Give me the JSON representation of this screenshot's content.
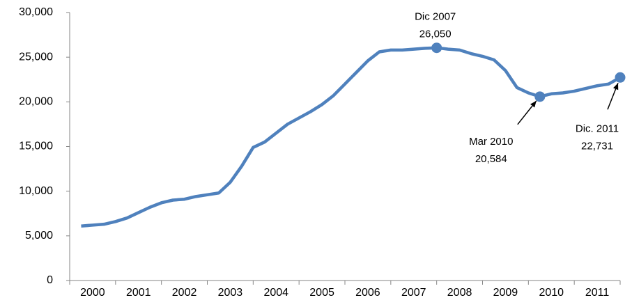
{
  "chart_data": {
    "type": "line",
    "categories": [
      null,
      "2000",
      null,
      null,
      null,
      "2001",
      null,
      null,
      null,
      "2002",
      null,
      null,
      null,
      "2003",
      null,
      null,
      null,
      "2004",
      null,
      null,
      null,
      "2005",
      null,
      null,
      null,
      "2006",
      null,
      null,
      null,
      "2007",
      null,
      null,
      null,
      "2008",
      null,
      null,
      null,
      "2009",
      null,
      null,
      null,
      "2010",
      null,
      null,
      null,
      "2011",
      null,
      null
    ],
    "series": [
      {
        "name": null,
        "color": "#4f81bd",
        "values": [
          6100,
          6200,
          6300,
          6600,
          7000,
          7600,
          8200,
          8700,
          9000,
          9100,
          9400,
          9600,
          9800,
          11000,
          12800,
          14900,
          15500,
          16500,
          17500,
          18200,
          18900,
          19700,
          20700,
          22000,
          23300,
          24600,
          25600,
          25800,
          25800,
          25900,
          26000,
          26050,
          25900,
          25800,
          25400,
          25100,
          24700,
          23500,
          21600,
          21000,
          20584,
          20900,
          21000,
          21200,
          21500,
          21800,
          22000,
          22731
        ],
        "value_labels": [
          null,
          null,
          null,
          null,
          null,
          null,
          null,
          null,
          null,
          null,
          null,
          null,
          null,
          null,
          null,
          null,
          null,
          null,
          null,
          null,
          null,
          null,
          null,
          null,
          null,
          null,
          null,
          null,
          null,
          null,
          null,
          "26,050",
          null,
          null,
          null,
          null,
          null,
          null,
          null,
          null,
          "20,584",
          null,
          null,
          null,
          null,
          null,
          null,
          "22,731"
        ]
      }
    ],
    "annotations": [
      "Dic 2007",
      "Mar 2010",
      "Dic. 2011"
    ],
    "ylim": [
      0,
      30000
    ],
    "yticks": [
      0,
      {
        "value": 5000,
        "label": "5,000"
      },
      {
        "value": 10000,
        "label": "10,000"
      },
      {
        "value": 15000,
        "label": "15,000"
      },
      {
        "value": 20000,
        "label": "20,000"
      },
      {
        "value": 25000,
        "label": "25,000"
      },
      {
        "value": 30000,
        "label": "30,000"
      }
    ],
    "grid": false
  }
}
